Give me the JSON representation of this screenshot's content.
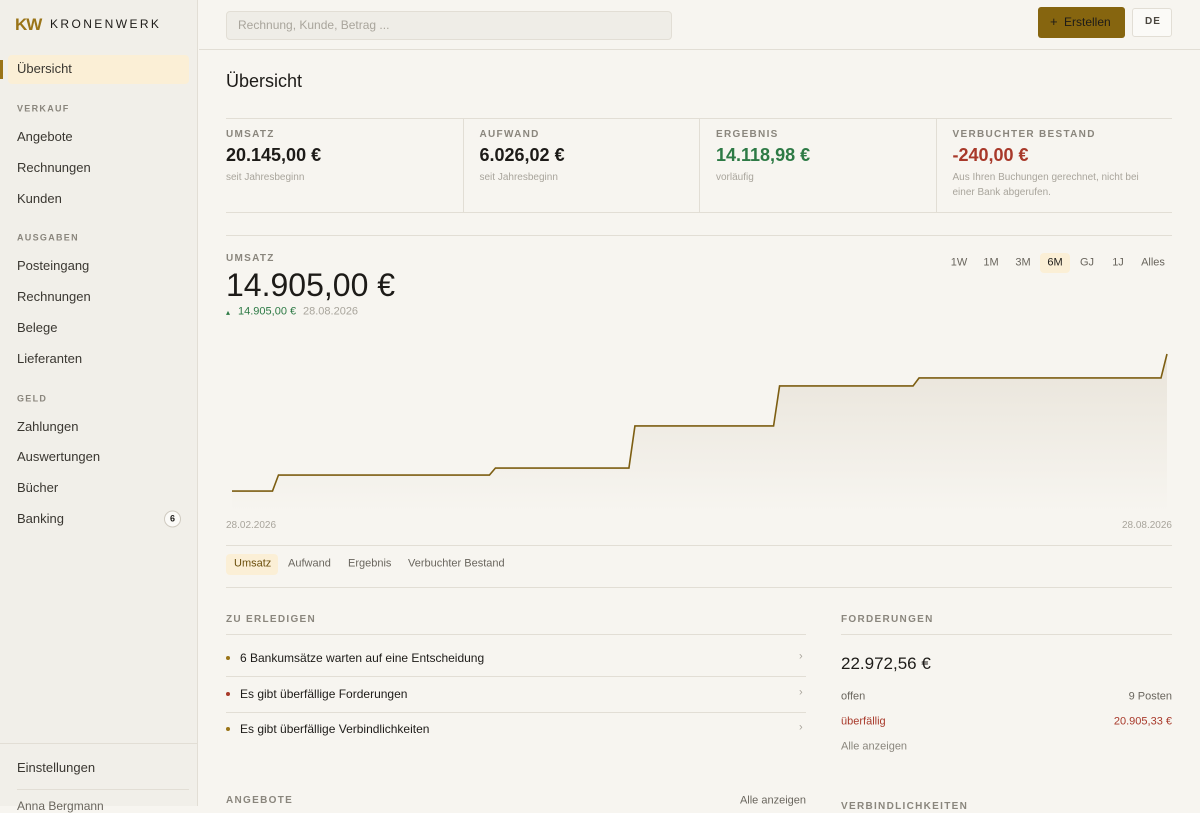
{
  "sidebar": {
    "brand_mark": "KW",
    "brand": "KRONENWERK",
    "top_item": {
      "label": "Übersicht",
      "selected": true
    },
    "sections": [
      {
        "title": "VERKAUF",
        "items": [
          {
            "label": "Angebote"
          },
          {
            "label": "Rechnungen"
          },
          {
            "label": "Kunden"
          }
        ]
      },
      {
        "title": "AUSGABEN",
        "items": [
          {
            "label": "Posteingang"
          },
          {
            "label": "Rechnungen"
          },
          {
            "label": "Belege"
          },
          {
            "label": "Lieferanten"
          }
        ]
      },
      {
        "title": "GELD",
        "items": [
          {
            "label": "Zahlungen"
          },
          {
            "label": "Auswertungen"
          },
          {
            "label": "Bücher"
          },
          {
            "label": "Banking",
            "badge": 6
          }
        ]
      }
    ],
    "settings": "Einstellungen",
    "user": "Anna Bergmann"
  },
  "topbar": {
    "search_placeholder": "Rechnung, Kunde, Betrag ...",
    "create_icon": "+",
    "create": "Erstellen",
    "language": "DE"
  },
  "page_title": "Übersicht",
  "kpis": [
    {
      "label": "UMSATZ",
      "value": "20.145,00 €",
      "note": "seit Jahresbeginn",
      "tone": "neutral"
    },
    {
      "label": "AUFWAND",
      "value": "6.026,02 €",
      "note": "seit Jahresbeginn",
      "tone": "neutral"
    },
    {
      "label": "ERGEBNIS",
      "value": "14.118,98 €",
      "note": "vorläufig",
      "tone": "positive"
    },
    {
      "label": "VERBUCHTER BESTAND",
      "value": "-240,00 €",
      "note": "Aus Ihren Buchungen gerechnet, nicht bei einer Bank abgerufen.",
      "tone": "negative"
    }
  ],
  "revenue": {
    "label": "UMSATZ",
    "total": "14.905,00 €",
    "change_icon": "▴",
    "change": "14.905,00 €",
    "change_date": "28.08.2026",
    "ranges": [
      {
        "label": "1W"
      },
      {
        "label": "1M"
      },
      {
        "label": "3M"
      },
      {
        "label": "6M",
        "selected": true
      },
      {
        "label": "GJ"
      },
      {
        "label": "1J"
      },
      {
        "label": "Alles"
      }
    ],
    "chart": {
      "type": "line",
      "step": true,
      "color": "#7d5e12",
      "x": [
        "28.02.2026",
        "09.03.2026",
        "20.04.2026",
        "17.05.2026",
        "14.06.2026",
        "11.07.2026",
        "28.08.2026"
      ],
      "values": [
        1380,
        2960,
        3650,
        7800,
        11750,
        12540,
        14905
      ]
    },
    "tabs": [
      {
        "label": "Umsatz",
        "selected": true
      },
      {
        "label": "Aufwand"
      },
      {
        "label": "Ergebnis"
      },
      {
        "label": "Verbuchter Bestand"
      }
    ]
  },
  "todo": {
    "title": "ZU ERLEDIGEN",
    "items": [
      {
        "text": "6 Bankumsätze warten auf eine Entscheidung",
        "color": "#9a7418"
      },
      {
        "text": "Es gibt überfällige Forderungen",
        "color": "#a8392a"
      },
      {
        "text": "Es gibt überfällige Verbindlichkeiten",
        "color": "#9a7418"
      }
    ],
    "chevron": "›"
  },
  "receivables": {
    "title": "FORDERUNGEN",
    "amount": "22.972,56 €",
    "open_label": "offen",
    "open_value": "9 Posten",
    "overdue_label": "überfällig",
    "overdue_value": "20.905,33 €",
    "link": "Alle anzeigen"
  },
  "offers": {
    "title": "ANGEBOTE",
    "link": "Alle anzeigen"
  },
  "payables": {
    "title": "VERBINDLICHKEITEN"
  }
}
